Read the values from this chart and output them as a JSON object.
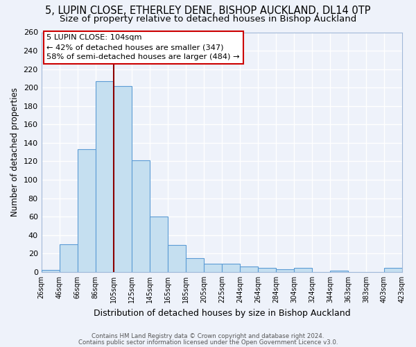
{
  "title1": "5, LUPIN CLOSE, ETHERLEY DENE, BISHOP AUCKLAND, DL14 0TP",
  "title2": "Size of property relative to detached houses in Bishop Auckland",
  "xlabel": "Distribution of detached houses by size in Bishop Auckland",
  "ylabel": "Number of detached properties",
  "footer1": "Contains HM Land Registry data © Crown copyright and database right 2024.",
  "footer2": "Contains public sector information licensed under the Open Government Licence v3.0.",
  "bin_labels": [
    "26sqm",
    "46sqm",
    "66sqm",
    "86sqm",
    "105sqm",
    "125sqm",
    "145sqm",
    "165sqm",
    "185sqm",
    "205sqm",
    "225sqm",
    "244sqm",
    "264sqm",
    "284sqm",
    "304sqm",
    "324sqm",
    "344sqm",
    "363sqm",
    "383sqm",
    "403sqm",
    "423sqm"
  ],
  "bar_heights": [
    2,
    30,
    133,
    207,
    202,
    121,
    60,
    29,
    15,
    9,
    9,
    6,
    4,
    3,
    4,
    0,
    1,
    0,
    0,
    4
  ],
  "bar_color": "#c5dff0",
  "bar_edge_color": "#5b9bd5",
  "vline_bin_index": 4,
  "vline_color": "#8b0000",
  "annotation_line0": "5 LUPIN CLOSE: 104sqm",
  "annotation_line1": "← 42% of detached houses are smaller (347)",
  "annotation_line2": "58% of semi-detached houses are larger (484) →",
  "annotation_box_edge": "#cc0000",
  "ylim": [
    0,
    260
  ],
  "yticks": [
    0,
    20,
    40,
    60,
    80,
    100,
    120,
    140,
    160,
    180,
    200,
    220,
    240,
    260
  ],
  "background_color": "#eef2fa",
  "grid_color": "#ffffff",
  "title_fontsize": 10.5,
  "subtitle_fontsize": 9.5
}
